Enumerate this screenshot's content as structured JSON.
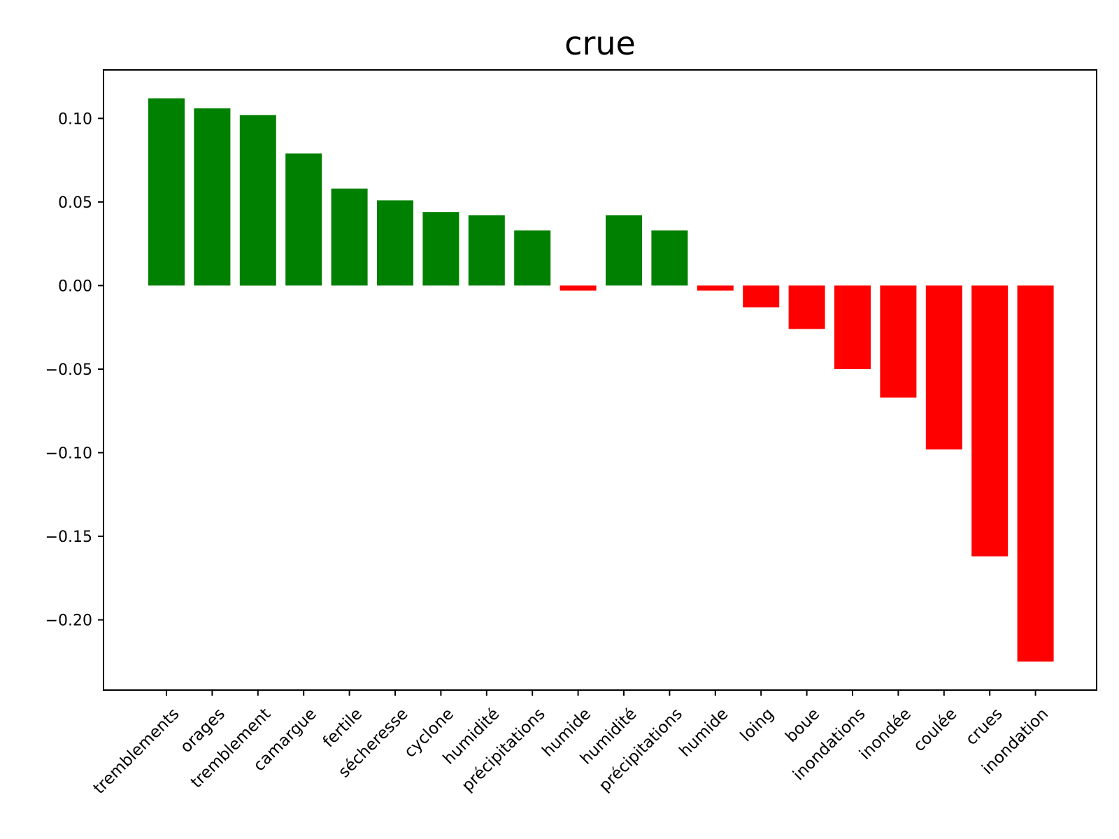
{
  "chart_data": {
    "type": "bar",
    "title": "crue",
    "xlabel": "",
    "ylabel": "",
    "categories": [
      "tremblements",
      "orages",
      "tremblement",
      "camargue",
      "fertile",
      "sécheresse",
      "cyclone",
      "humidité",
      "précipitations",
      "humide",
      "humidité",
      "précipitations",
      "humide",
      "loing",
      "boue",
      "inondations",
      "inondée",
      "coulée",
      "crues",
      "inondation"
    ],
    "values": [
      0.112,
      0.106,
      0.102,
      0.079,
      0.058,
      0.051,
      0.044,
      0.042,
      0.033,
      -0.003,
      0.042,
      0.033,
      -0.003,
      -0.013,
      -0.026,
      -0.05,
      -0.067,
      -0.098,
      -0.162,
      -0.225
    ],
    "ylim": [
      -0.242,
      0.129
    ],
    "yticks": [
      0.1,
      0.05,
      0.0,
      -0.05,
      -0.1,
      -0.15,
      -0.2
    ],
    "ytick_labels": [
      "0.10",
      "0.05",
      "0.00",
      "−0.05",
      "−0.10",
      "−0.15",
      "−0.20"
    ],
    "grid": false,
    "colors": {
      "positive": "#008000",
      "negative": "#ff0000"
    }
  }
}
